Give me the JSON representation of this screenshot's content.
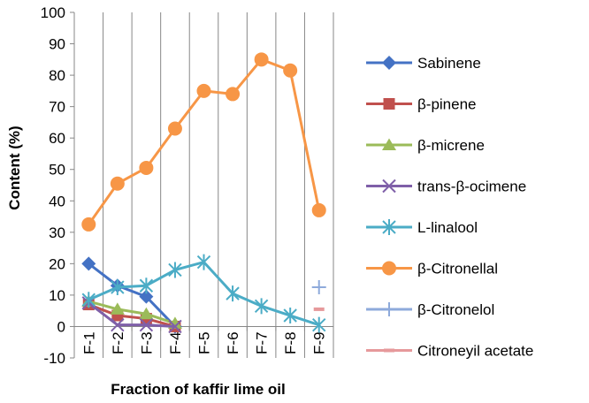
{
  "chart_data": {
    "type": "line",
    "categories": [
      "F-1",
      "F-2",
      "F-3",
      "F-4",
      "F-5",
      "F-6",
      "F-7",
      "F-8",
      "F-9"
    ],
    "xlabel": "Fraction of kaffir lime oil",
    "ylabel": "Content (%)",
    "ylim": [
      -10,
      100
    ],
    "yticks": [
      -10,
      0,
      10,
      20,
      30,
      40,
      50,
      60,
      70,
      80,
      90,
      100
    ],
    "grid": "vertical lines only",
    "legend": "right",
    "series": [
      {
        "name": "Sabinene",
        "color": "#4472C4",
        "marker": "diamond",
        "values": [
          20,
          13,
          9.5,
          0,
          null,
          null,
          null,
          null,
          null
        ]
      },
      {
        "name": "β-pinene",
        "color": "#C0504D",
        "marker": "square",
        "values": [
          7,
          3.5,
          2.5,
          0,
          null,
          null,
          null,
          null,
          null
        ]
      },
      {
        "name": "β-micrene",
        "color": "#9BBB59",
        "marker": "triangle",
        "values": [
          8,
          5.5,
          4,
          1,
          null,
          null,
          null,
          null,
          null
        ]
      },
      {
        "name": "trans-β-ocimene",
        "color": "#7F5FA8",
        "marker": "x",
        "values": [
          7.5,
          0.5,
          0.5,
          0,
          null,
          null,
          null,
          null,
          null
        ]
      },
      {
        "name": "L-linalool",
        "color": "#4BACC6",
        "marker": "star",
        "values": [
          8.5,
          12.5,
          13,
          18,
          20.5,
          10.5,
          6.5,
          3.5,
          0.5
        ]
      },
      {
        "name": "β-Citronellal",
        "color": "#F79646",
        "marker": "circle",
        "values": [
          32.5,
          45.5,
          50.5,
          63,
          75,
          74,
          85,
          81.5,
          37
        ]
      },
      {
        "name": "β-Citronelol",
        "color": "#8EAADB",
        "marker": "plus",
        "values": [
          null,
          null,
          null,
          null,
          null,
          null,
          null,
          null,
          12.5
        ]
      },
      {
        "name": "Citroneyil acetate",
        "color": "#E6999B",
        "marker": "dash",
        "values": [
          null,
          null,
          null,
          null,
          null,
          null,
          null,
          null,
          5.5
        ]
      }
    ]
  }
}
